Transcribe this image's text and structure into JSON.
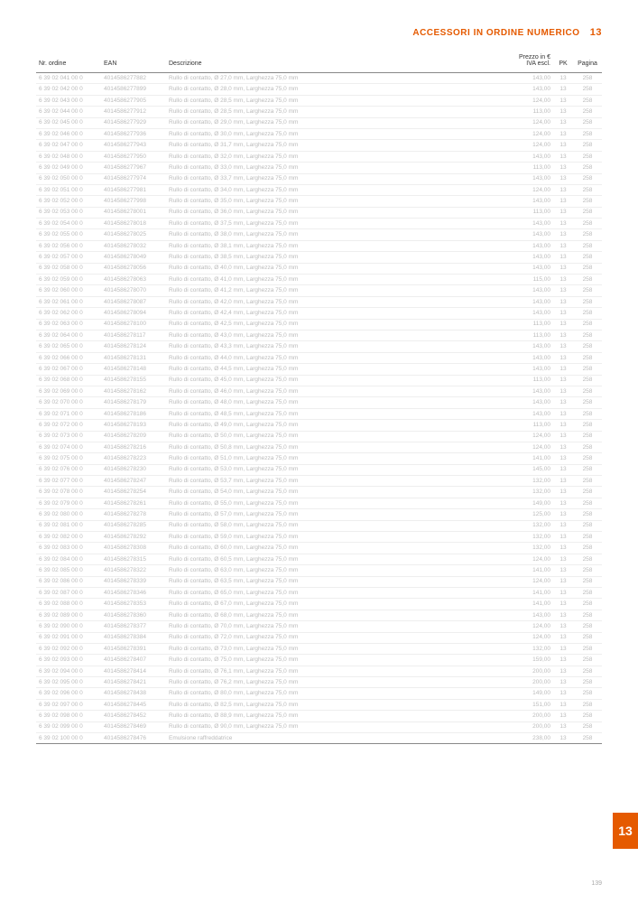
{
  "header": {
    "title": "ACCESSORI IN ORDINE NUMERICO",
    "section": "13"
  },
  "sideTab": "13",
  "footerPage": "139",
  "columns": {
    "nr": "Nr. ordine",
    "ean": "EAN",
    "desc": "Descrizione",
    "price": "Prezzo in €\nIVA escl.",
    "pk": "PK",
    "pag": "Pagina"
  },
  "rows": [
    {
      "nr": "6 39 02 041 00 0",
      "ean": "4014586277882",
      "desc": "Rullo di contatto, Ø 27,0 mm, Larghezza 75,0 mm",
      "price": "143,00",
      "pk": "13",
      "pag": "258"
    },
    {
      "nr": "6 39 02 042 00 0",
      "ean": "4014586277899",
      "desc": "Rullo di contatto, Ø 28,0 mm, Larghezza 75,0 mm",
      "price": "143,00",
      "pk": "13",
      "pag": "258"
    },
    {
      "nr": "6 39 02 043 00 0",
      "ean": "4014586277905",
      "desc": "Rullo di contatto, Ø 28,5 mm, Larghezza 75,0 mm",
      "price": "124,00",
      "pk": "13",
      "pag": "258"
    },
    {
      "nr": "6 39 02 044 00 0",
      "ean": "4014586277912",
      "desc": "Rullo di contatto, Ø 28,5 mm, Larghezza 75,0 mm",
      "price": "113,00",
      "pk": "13",
      "pag": "258"
    },
    {
      "nr": "6 39 02 045 00 0",
      "ean": "4014586277929",
      "desc": "Rullo di contatto, Ø 29,0 mm, Larghezza 75,0 mm",
      "price": "124,00",
      "pk": "13",
      "pag": "258"
    },
    {
      "nr": "6 39 02 046 00 0",
      "ean": "4014586277936",
      "desc": "Rullo di contatto, Ø 30,0 mm, Larghezza 75,0 mm",
      "price": "124,00",
      "pk": "13",
      "pag": "258"
    },
    {
      "nr": "6 39 02 047 00 0",
      "ean": "4014586277943",
      "desc": "Rullo di contatto, Ø 31,7 mm, Larghezza 75,0 mm",
      "price": "124,00",
      "pk": "13",
      "pag": "258"
    },
    {
      "nr": "6 39 02 048 00 0",
      "ean": "4014586277950",
      "desc": "Rullo di contatto, Ø 32,0 mm, Larghezza 75,0 mm",
      "price": "143,00",
      "pk": "13",
      "pag": "258"
    },
    {
      "nr": "6 39 02 049 00 0",
      "ean": "4014586277967",
      "desc": "Rullo di contatto, Ø 33,0 mm, Larghezza 75,0 mm",
      "price": "113,00",
      "pk": "13",
      "pag": "258"
    },
    {
      "nr": "6 39 02 050 00 0",
      "ean": "4014586277974",
      "desc": "Rullo di contatto, Ø 33,7 mm, Larghezza 75,0 mm",
      "price": "143,00",
      "pk": "13",
      "pag": "258"
    },
    {
      "nr": "6 39 02 051 00 0",
      "ean": "4014586277981",
      "desc": "Rullo di contatto, Ø 34,0 mm, Larghezza 75,0 mm",
      "price": "124,00",
      "pk": "13",
      "pag": "258"
    },
    {
      "nr": "6 39 02 052 00 0",
      "ean": "4014586277998",
      "desc": "Rullo di contatto, Ø 35,0 mm, Larghezza 75,0 mm",
      "price": "143,00",
      "pk": "13",
      "pag": "258"
    },
    {
      "nr": "6 39 02 053 00 0",
      "ean": "4014586278001",
      "desc": "Rullo di contatto, Ø 36,0 mm, Larghezza 75,0 mm",
      "price": "113,00",
      "pk": "13",
      "pag": "258"
    },
    {
      "nr": "6 39 02 054 00 0",
      "ean": "4014586278018",
      "desc": "Rullo di contatto, Ø 37,5 mm, Larghezza 75,0 mm",
      "price": "143,00",
      "pk": "13",
      "pag": "258"
    },
    {
      "nr": "6 39 02 055 00 0",
      "ean": "4014586278025",
      "desc": "Rullo di contatto, Ø 38,0 mm, Larghezza 75,0 mm",
      "price": "143,00",
      "pk": "13",
      "pag": "258"
    },
    {
      "nr": "6 39 02 056 00 0",
      "ean": "4014586278032",
      "desc": "Rullo di contatto, Ø 38,1 mm, Larghezza 75,0 mm",
      "price": "143,00",
      "pk": "13",
      "pag": "258"
    },
    {
      "nr": "6 39 02 057 00 0",
      "ean": "4014586278049",
      "desc": "Rullo di contatto, Ø 38,5 mm, Larghezza 75,0 mm",
      "price": "143,00",
      "pk": "13",
      "pag": "258"
    },
    {
      "nr": "6 39 02 058 00 0",
      "ean": "4014586278056",
      "desc": "Rullo di contatto, Ø 40,0 mm, Larghezza 75,0 mm",
      "price": "143,00",
      "pk": "13",
      "pag": "258"
    },
    {
      "nr": "6 39 02 059 00 0",
      "ean": "4014586278063",
      "desc": "Rullo di contatto, Ø 41,0 mm, Larghezza 75,0 mm",
      "price": "115,00",
      "pk": "13",
      "pag": "258"
    },
    {
      "nr": "6 39 02 060 00 0",
      "ean": "4014586278070",
      "desc": "Rullo di contatto, Ø 41,2 mm, Larghezza 75,0 mm",
      "price": "143,00",
      "pk": "13",
      "pag": "258"
    },
    {
      "nr": "6 39 02 061 00 0",
      "ean": "4014586278087",
      "desc": "Rullo di contatto, Ø 42,0 mm, Larghezza 75,0 mm",
      "price": "143,00",
      "pk": "13",
      "pag": "258"
    },
    {
      "nr": "6 39 02 062 00 0",
      "ean": "4014586278094",
      "desc": "Rullo di contatto, Ø 42,4 mm, Larghezza 75,0 mm",
      "price": "143,00",
      "pk": "13",
      "pag": "258"
    },
    {
      "nr": "6 39 02 063 00 0",
      "ean": "4014586278100",
      "desc": "Rullo di contatto, Ø 42,5 mm, Larghezza 75,0 mm",
      "price": "113,00",
      "pk": "13",
      "pag": "258"
    },
    {
      "nr": "6 39 02 064 00 0",
      "ean": "4014586278117",
      "desc": "Rullo di contatto, Ø 43,0 mm, Larghezza 75,0 mm",
      "price": "113,00",
      "pk": "13",
      "pag": "258"
    },
    {
      "nr": "6 39 02 065 00 0",
      "ean": "4014586278124",
      "desc": "Rullo di contatto, Ø 43,3 mm, Larghezza 75,0 mm",
      "price": "143,00",
      "pk": "13",
      "pag": "258"
    },
    {
      "nr": "6 39 02 066 00 0",
      "ean": "4014586278131",
      "desc": "Rullo di contatto, Ø 44,0 mm, Larghezza 75,0 mm",
      "price": "143,00",
      "pk": "13",
      "pag": "258"
    },
    {
      "nr": "6 39 02 067 00 0",
      "ean": "4014586278148",
      "desc": "Rullo di contatto, Ø 44,5 mm, Larghezza 75,0 mm",
      "price": "143,00",
      "pk": "13",
      "pag": "258"
    },
    {
      "nr": "6 39 02 068 00 0",
      "ean": "4014586278155",
      "desc": "Rullo di contatto, Ø 45,0 mm, Larghezza 75,0 mm",
      "price": "113,00",
      "pk": "13",
      "pag": "258"
    },
    {
      "nr": "6 39 02 069 00 0",
      "ean": "4014586278162",
      "desc": "Rullo di contatto, Ø 46,0 mm, Larghezza 75,0 mm",
      "price": "143,00",
      "pk": "13",
      "pag": "258"
    },
    {
      "nr": "6 39 02 070 00 0",
      "ean": "4014586278179",
      "desc": "Rullo di contatto, Ø 48,0 mm, Larghezza 75,0 mm",
      "price": "143,00",
      "pk": "13",
      "pag": "258"
    },
    {
      "nr": "6 39 02 071 00 0",
      "ean": "4014586278186",
      "desc": "Rullo di contatto, Ø 48,5 mm, Larghezza 75,0 mm",
      "price": "143,00",
      "pk": "13",
      "pag": "258"
    },
    {
      "nr": "6 39 02 072 00 0",
      "ean": "4014586278193",
      "desc": "Rullo di contatto, Ø 49,0 mm, Larghezza 75,0 mm",
      "price": "113,00",
      "pk": "13",
      "pag": "258"
    },
    {
      "nr": "6 39 02 073 00 0",
      "ean": "4014586278209",
      "desc": "Rullo di contatto, Ø 50,0 mm, Larghezza 75,0 mm",
      "price": "124,00",
      "pk": "13",
      "pag": "258"
    },
    {
      "nr": "6 39 02 074 00 0",
      "ean": "4014586278216",
      "desc": "Rullo di contatto, Ø 50,8 mm, Larghezza 75,0 mm",
      "price": "124,00",
      "pk": "13",
      "pag": "258"
    },
    {
      "nr": "6 39 02 075 00 0",
      "ean": "4014586278223",
      "desc": "Rullo di contatto, Ø 51,0 mm, Larghezza 75,0 mm",
      "price": "141,00",
      "pk": "13",
      "pag": "258"
    },
    {
      "nr": "6 39 02 076 00 0",
      "ean": "4014586278230",
      "desc": "Rullo di contatto, Ø 53,0 mm, Larghezza 75,0 mm",
      "price": "145,00",
      "pk": "13",
      "pag": "258"
    },
    {
      "nr": "6 39 02 077 00 0",
      "ean": "4014586278247",
      "desc": "Rullo di contatto, Ø 53,7 mm, Larghezza 75,0 mm",
      "price": "132,00",
      "pk": "13",
      "pag": "258"
    },
    {
      "nr": "6 39 02 078 00 0",
      "ean": "4014586278254",
      "desc": "Rullo di contatto, Ø 54,0 mm, Larghezza 75,0 mm",
      "price": "132,00",
      "pk": "13",
      "pag": "258"
    },
    {
      "nr": "6 39 02 079 00 0",
      "ean": "4014586278261",
      "desc": "Rullo di contatto, Ø 55,0 mm, Larghezza 75,0 mm",
      "price": "149,00",
      "pk": "13",
      "pag": "258"
    },
    {
      "nr": "6 39 02 080 00 0",
      "ean": "4014586278278",
      "desc": "Rullo di contatto, Ø 57,0 mm, Larghezza 75,0 mm",
      "price": "125,00",
      "pk": "13",
      "pag": "258"
    },
    {
      "nr": "6 39 02 081 00 0",
      "ean": "4014586278285",
      "desc": "Rullo di contatto, Ø 58,0 mm, Larghezza 75,0 mm",
      "price": "132,00",
      "pk": "13",
      "pag": "258"
    },
    {
      "nr": "6 39 02 082 00 0",
      "ean": "4014586278292",
      "desc": "Rullo di contatto, Ø 59,0 mm, Larghezza 75,0 mm",
      "price": "132,00",
      "pk": "13",
      "pag": "258"
    },
    {
      "nr": "6 39 02 083 00 0",
      "ean": "4014586278308",
      "desc": "Rullo di contatto, Ø 60,0 mm, Larghezza 75,0 mm",
      "price": "132,00",
      "pk": "13",
      "pag": "258"
    },
    {
      "nr": "6 39 02 084 00 0",
      "ean": "4014586278315",
      "desc": "Rullo di contatto, Ø 60,5 mm, Larghezza 75,0 mm",
      "price": "124,00",
      "pk": "13",
      "pag": "258"
    },
    {
      "nr": "6 39 02 085 00 0",
      "ean": "4014586278322",
      "desc": "Rullo di contatto, Ø 63,0 mm, Larghezza 75,0 mm",
      "price": "141,00",
      "pk": "13",
      "pag": "258"
    },
    {
      "nr": "6 39 02 086 00 0",
      "ean": "4014586278339",
      "desc": "Rullo di contatto, Ø 63,5 mm, Larghezza 75,0 mm",
      "price": "124,00",
      "pk": "13",
      "pag": "258"
    },
    {
      "nr": "6 39 02 087 00 0",
      "ean": "4014586278346",
      "desc": "Rullo di contatto, Ø 65,0 mm, Larghezza 75,0 mm",
      "price": "141,00",
      "pk": "13",
      "pag": "258"
    },
    {
      "nr": "6 39 02 088 00 0",
      "ean": "4014586278353",
      "desc": "Rullo di contatto, Ø 67,0 mm, Larghezza 75,0 mm",
      "price": "141,00",
      "pk": "13",
      "pag": "258"
    },
    {
      "nr": "6 39 02 089 00 0",
      "ean": "4014586278360",
      "desc": "Rullo di contatto, Ø 68,0 mm, Larghezza 75,0 mm",
      "price": "143,00",
      "pk": "13",
      "pag": "258"
    },
    {
      "nr": "6 39 02 090 00 0",
      "ean": "4014586278377",
      "desc": "Rullo di contatto, Ø 70,0 mm, Larghezza 75,0 mm",
      "price": "124,00",
      "pk": "13",
      "pag": "258"
    },
    {
      "nr": "6 39 02 091 00 0",
      "ean": "4014586278384",
      "desc": "Rullo di contatto, Ø 72,0 mm, Larghezza 75,0 mm",
      "price": "124,00",
      "pk": "13",
      "pag": "258"
    },
    {
      "nr": "6 39 02 092 00 0",
      "ean": "4014586278391",
      "desc": "Rullo di contatto, Ø 73,0 mm, Larghezza 75,0 mm",
      "price": "132,00",
      "pk": "13",
      "pag": "258"
    },
    {
      "nr": "6 39 02 093 00 0",
      "ean": "4014586278407",
      "desc": "Rullo di contatto, Ø 75,0 mm, Larghezza 75,0 mm",
      "price": "159,00",
      "pk": "13",
      "pag": "258"
    },
    {
      "nr": "6 39 02 094 00 0",
      "ean": "4014586278414",
      "desc": "Rullo di contatto, Ø 76,1 mm, Larghezza 75,0 mm",
      "price": "200,00",
      "pk": "13",
      "pag": "258"
    },
    {
      "nr": "6 39 02 095 00 0",
      "ean": "4014586278421",
      "desc": "Rullo di contatto, Ø 76,2 mm, Larghezza 75,0 mm",
      "price": "200,00",
      "pk": "13",
      "pag": "258"
    },
    {
      "nr": "6 39 02 096 00 0",
      "ean": "4014586278438",
      "desc": "Rullo di contatto, Ø 80,0 mm, Larghezza 75,0 mm",
      "price": "149,00",
      "pk": "13",
      "pag": "258"
    },
    {
      "nr": "6 39 02 097 00 0",
      "ean": "4014586278445",
      "desc": "Rullo di contatto, Ø 82,5 mm, Larghezza 75,0 mm",
      "price": "151,00",
      "pk": "13",
      "pag": "258"
    },
    {
      "nr": "6 39 02 098 00 0",
      "ean": "4014586278452",
      "desc": "Rullo di contatto, Ø 88,9 mm, Larghezza 75,0 mm",
      "price": "200,00",
      "pk": "13",
      "pag": "258"
    },
    {
      "nr": "6 39 02 099 00 0",
      "ean": "4014586278469",
      "desc": "Rullo di contatto, Ø 90,0 mm, Larghezza 75,0 mm",
      "price": "200,00",
      "pk": "13",
      "pag": "258"
    },
    {
      "nr": "6 39 02 100 00 0",
      "ean": "4014586278476",
      "desc": "Emulsione raffreddatrice",
      "price": "238,00",
      "pk": "13",
      "pag": "258"
    }
  ],
  "styling": {
    "accent": "#e55a00",
    "rowText": "#bbbbbb",
    "headerText": "#333333",
    "rowBorder": "#eeeeee",
    "tableBorder": "#888888",
    "background": "#ffffff",
    "fontSizeBody": 6.5,
    "fontSizeHeader": 7,
    "titleFontSize": 10
  }
}
